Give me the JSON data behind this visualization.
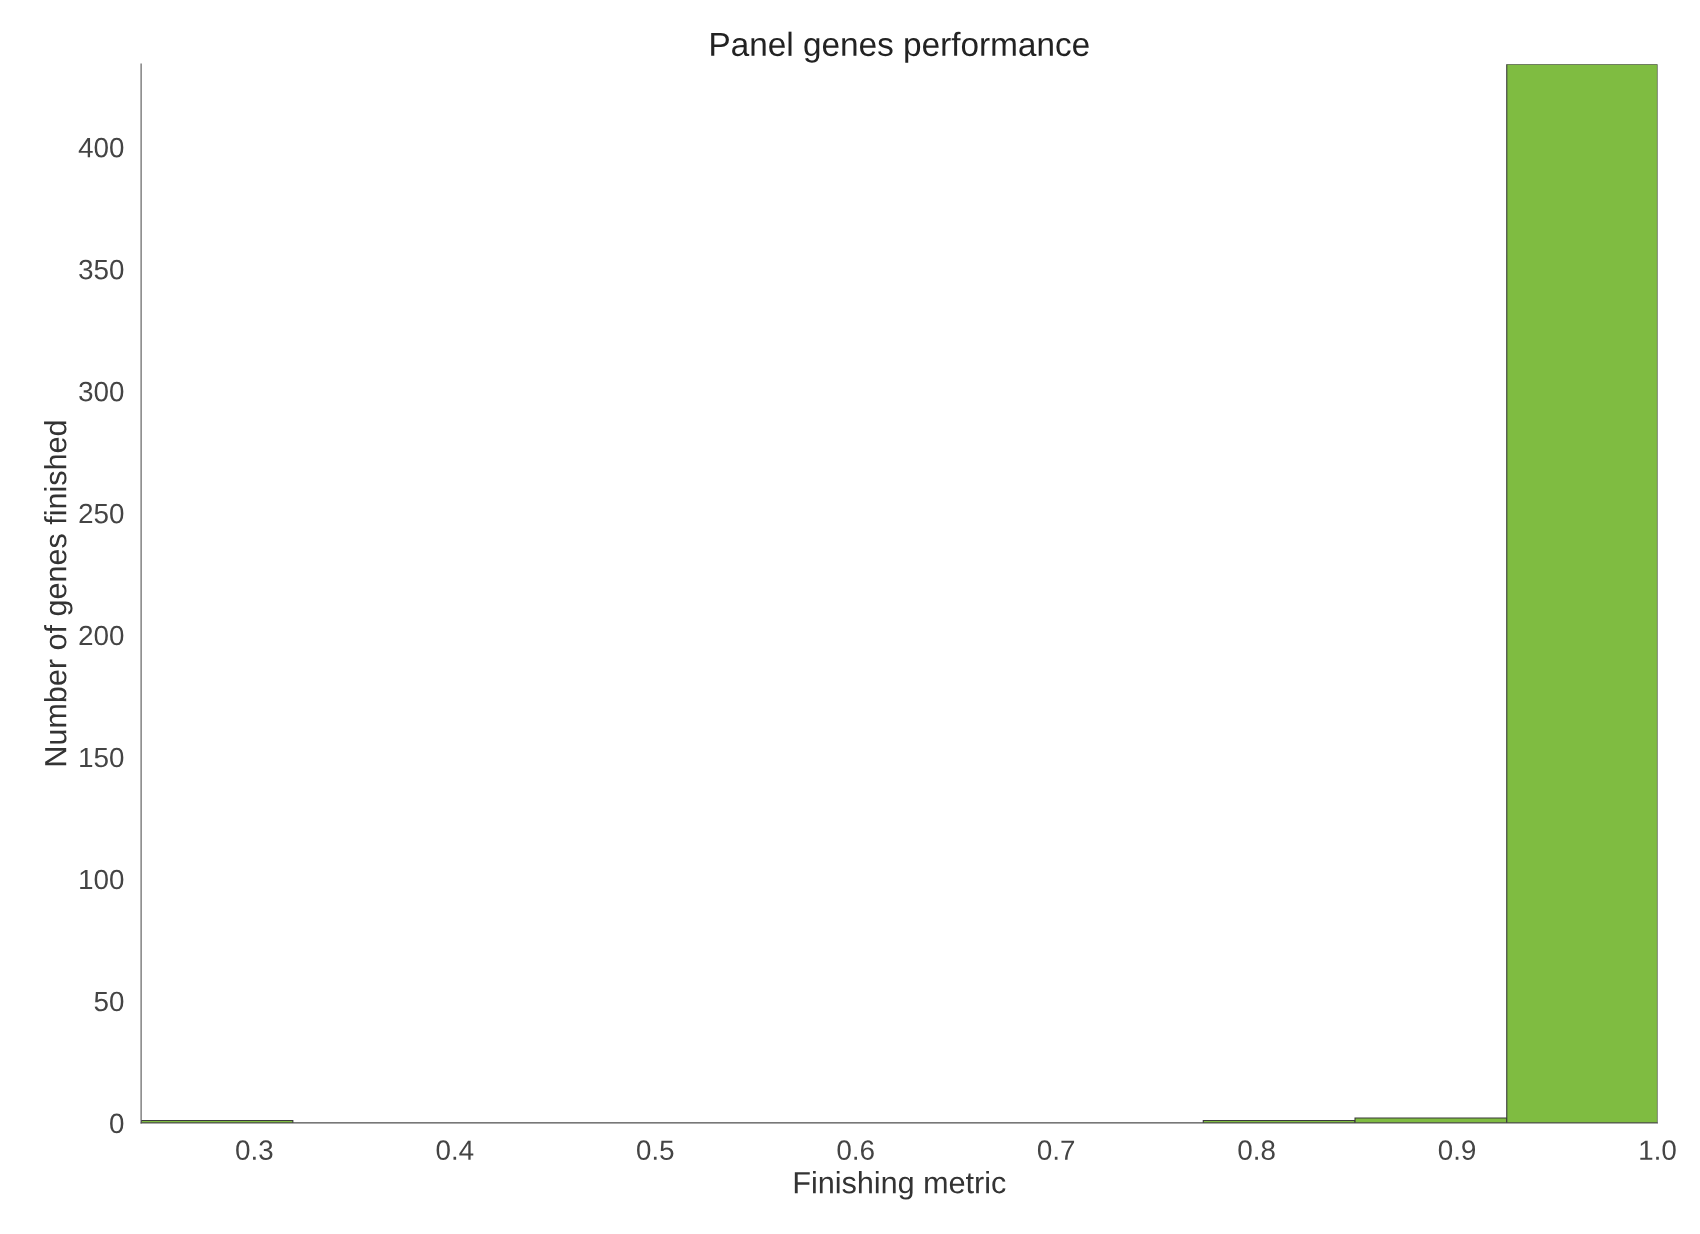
{
  "chart_data": {
    "type": "histogram",
    "title": "Panel genes performance",
    "xlabel": "Finishing metric",
    "ylabel": "Number of genes finished",
    "bins": [
      0.2435,
      0.3192,
      0.7734,
      0.8491,
      0.9248,
      1.0
    ],
    "values": [
      1,
      0,
      1,
      2,
      434
    ],
    "color": "#7fbc41",
    "xlim": [
      0.2435,
      1.0
    ],
    "ylim": [
      0,
      434
    ],
    "xticks": [
      {
        "value": 0.3,
        "label": "0.3"
      },
      {
        "value": 0.4,
        "label": "0.4"
      },
      {
        "value": 0.5,
        "label": "0.5"
      },
      {
        "value": 0.6,
        "label": "0.6"
      },
      {
        "value": 0.7,
        "label": "0.7"
      },
      {
        "value": 0.8,
        "label": "0.8"
      },
      {
        "value": 0.9,
        "label": "0.9"
      },
      {
        "value": 1.0,
        "label": "1.0"
      }
    ],
    "yticks": [
      0,
      50,
      100,
      150,
      200,
      250,
      300,
      350,
      400
    ],
    "grid": false,
    "legend": false
  }
}
